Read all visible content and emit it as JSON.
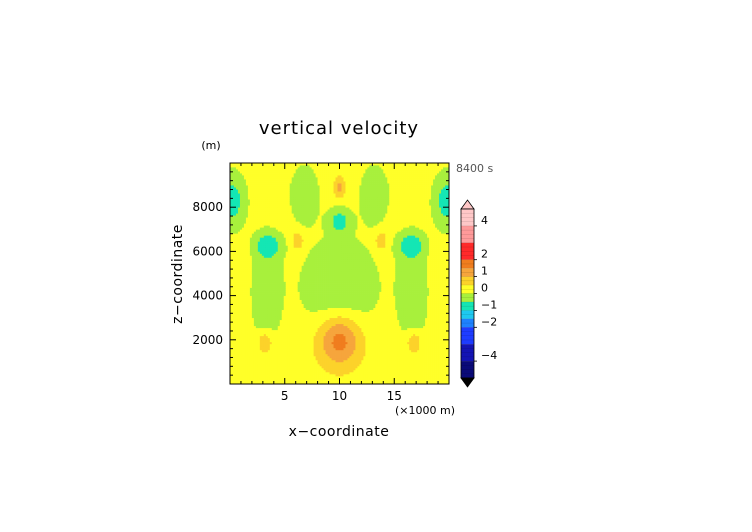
{
  "chart_data": {
    "type": "heatmap",
    "title": "vertical velocity",
    "xlabel": "x−coordinate",
    "ylabel": "z−coordinate",
    "x_unit": "(×1000 m)",
    "y_unit": "(m)",
    "time_label": "8400 s",
    "xlim": [
      0,
      20
    ],
    "ylim": [
      0,
      10000
    ],
    "x_ticks": [
      5,
      10,
      15
    ],
    "x_tick_labels": [
      "5",
      "10",
      "15"
    ],
    "y_ticks": [
      2000,
      4000,
      6000,
      8000
    ],
    "y_tick_labels": [
      "2000",
      "4000",
      "6000",
      "8000"
    ],
    "colorbar": {
      "tick_values": [
        4,
        2,
        1,
        0,
        -1,
        -2,
        -4
      ],
      "tick_labels": [
        "4",
        "2",
        "1",
        "0",
        "−1",
        "−2",
        "−4"
      ],
      "levels": [
        {
          "from": 4,
          "to": 5,
          "color": "#ffc8c8"
        },
        {
          "from": 3,
          "to": 4,
          "color": "#ff9a9a"
        },
        {
          "from": 2,
          "to": 3,
          "color": "#ff2a2a"
        },
        {
          "from": 1.5,
          "to": 2,
          "color": "#f07d1e"
        },
        {
          "from": 1,
          "to": 1.5,
          "color": "#f6a53c"
        },
        {
          "from": 0.5,
          "to": 1,
          "color": "#fcd22a"
        },
        {
          "from": 0,
          "to": 0.5,
          "color": "#ffff28"
        },
        {
          "from": -0.5,
          "to": 0,
          "color": "#a8f03c"
        },
        {
          "from": -1,
          "to": -0.5,
          "color": "#14e6b4"
        },
        {
          "from": -1.5,
          "to": -1,
          "color": "#1ec8f0"
        },
        {
          "from": -2,
          "to": -1.5,
          "color": "#1e82ff"
        },
        {
          "from": -3,
          "to": -2,
          "color": "#1e3cff"
        },
        {
          "from": -4,
          "to": -3,
          "color": "#1414b4"
        },
        {
          "from": -5,
          "to": -4,
          "color": "#0a0a78"
        }
      ],
      "over_color": "#ffc8c8",
      "under_color": "#000000"
    },
    "field_features": [
      {
        "x": 10,
        "z": 2000,
        "w": 1.6,
        "sx": 1.4,
        "sz": 850
      },
      {
        "x": 10,
        "z": 7400,
        "w": -0.9,
        "sx": 0.75,
        "sz": 420
      },
      {
        "x": 3.5,
        "z": 6300,
        "w": -0.9,
        "sx": 0.9,
        "sz": 380
      },
      {
        "x": 16.5,
        "z": 6300,
        "w": -0.9,
        "sx": 0.9,
        "sz": 380
      },
      {
        "x": 0.2,
        "z": 8300,
        "w": -1.0,
        "sx": 0.9,
        "sz": 900
      },
      {
        "x": 19.8,
        "z": 8300,
        "w": -1.0,
        "sx": 0.9,
        "sz": 900
      },
      {
        "x": 10,
        "z": 8900,
        "w": 0.9,
        "sx": 0.35,
        "sz": 350
      },
      {
        "x": 6.2,
        "z": 6500,
        "w": 0.8,
        "sx": 0.4,
        "sz": 300
      },
      {
        "x": 13.8,
        "z": 6500,
        "w": 0.8,
        "sx": 0.4,
        "sz": 300
      },
      {
        "x": 3.2,
        "z": 1900,
        "w": 0.9,
        "sx": 0.5,
        "sz": 380
      },
      {
        "x": 16.8,
        "z": 1900,
        "w": 0.9,
        "sx": 0.5,
        "sz": 380
      },
      {
        "x": 10,
        "z": 4400,
        "w": -0.75,
        "sx": 2.5,
        "sz": 1500
      },
      {
        "x": 3.3,
        "z": 4200,
        "w": -0.65,
        "sx": 1.0,
        "sz": 1800
      },
      {
        "x": 16.7,
        "z": 4200,
        "w": -0.65,
        "sx": 1.0,
        "sz": 1800
      },
      {
        "x": 6.8,
        "z": 8600,
        "w": -0.6,
        "sx": 1.0,
        "sz": 1000
      },
      {
        "x": 13.2,
        "z": 8600,
        "w": -0.6,
        "sx": 1.0,
        "sz": 1000
      }
    ],
    "field_background": 0.25
  }
}
